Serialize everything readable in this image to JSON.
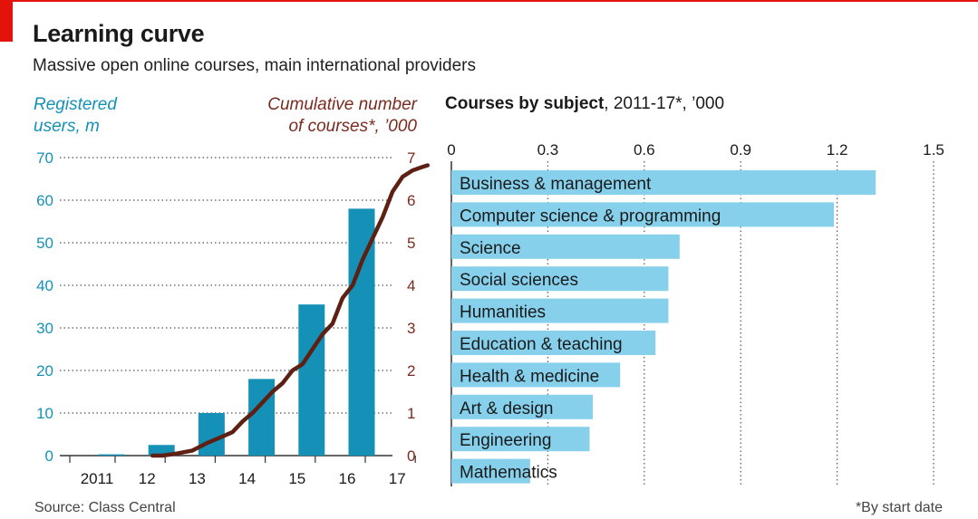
{
  "header": {
    "title": "Learning curve",
    "subtitle": "Massive open online courses, main international providers"
  },
  "footer": {
    "source": "Source: Class Central",
    "footnote": "*By start date"
  },
  "colors": {
    "bar_blue": "#1591b8",
    "line_brown": "#5e2012",
    "hbar_blue": "#86d0ec",
    "accent_red": "#e3120b"
  },
  "chart_data": [
    {
      "type": "bar",
      "combo": "bar+line",
      "left_axis_label_line1": "Registered",
      "left_axis_label_line2": "users, m",
      "right_axis_label_line1": "Cumulative number",
      "right_axis_label_line2": "of courses*, ’000",
      "categories": [
        "2011",
        "12",
        "13",
        "14",
        "15",
        "16",
        "17"
      ],
      "ylim": [
        0,
        70
      ],
      "yticks": [
        0,
        10,
        20,
        30,
        40,
        50,
        60,
        70
      ],
      "y2lim": [
        0,
        7
      ],
      "y2ticks": [
        0,
        1,
        2,
        3,
        4,
        5,
        6,
        7
      ],
      "grid": true,
      "series": [
        {
          "name": "Registered users, m",
          "kind": "bar",
          "x": [
            2011,
            2012,
            2013,
            2014,
            2015,
            2016
          ],
          "values": [
            0.3,
            2.5,
            10,
            18,
            35.5,
            58
          ]
        },
        {
          "name": "Cumulative number of courses*, ’000",
          "kind": "line",
          "axis": "right",
          "points": [
            [
              2011.8,
              0.0
            ],
            [
              2012.0,
              0.0
            ],
            [
              2012.3,
              0.05
            ],
            [
              2012.6,
              0.12
            ],
            [
              2012.9,
              0.3
            ],
            [
              2013.2,
              0.45
            ],
            [
              2013.4,
              0.55
            ],
            [
              2013.6,
              0.8
            ],
            [
              2013.8,
              1.0
            ],
            [
              2014.0,
              1.25
            ],
            [
              2014.2,
              1.5
            ],
            [
              2014.4,
              1.7
            ],
            [
              2014.6,
              2.0
            ],
            [
              2014.8,
              2.15
            ],
            [
              2015.0,
              2.5
            ],
            [
              2015.2,
              2.85
            ],
            [
              2015.4,
              3.1
            ],
            [
              2015.6,
              3.7
            ],
            [
              2015.8,
              4.0
            ],
            [
              2016.0,
              4.6
            ],
            [
              2016.2,
              5.1
            ],
            [
              2016.4,
              5.6
            ],
            [
              2016.6,
              6.2
            ],
            [
              2016.8,
              6.55
            ],
            [
              2017.0,
              6.7
            ],
            [
              2017.2,
              6.78
            ],
            [
              2017.3,
              6.82
            ]
          ]
        }
      ]
    },
    {
      "type": "bar",
      "orientation": "horizontal",
      "title": "Courses by subject",
      "title_suffix": ", 2011-17*, ’000",
      "xlim": [
        0,
        1.5
      ],
      "xticks": [
        "0",
        "0.3",
        "0.6",
        "0.9",
        "1.2",
        "1.5"
      ],
      "grid": true,
      "categories": [
        "Business & management",
        "Computer science & programming",
        "Science",
        "Social sciences",
        "Humanities",
        "Education & teaching",
        "Health & medicine",
        "Art & design",
        "Engineering",
        "Mathematics"
      ],
      "values": [
        1.32,
        1.19,
        0.71,
        0.675,
        0.675,
        0.635,
        0.525,
        0.44,
        0.43,
        0.245
      ]
    }
  ]
}
